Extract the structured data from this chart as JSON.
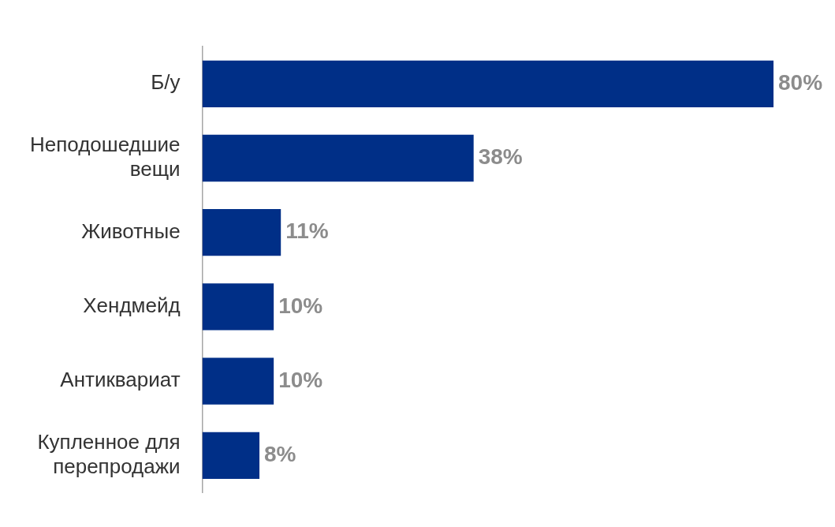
{
  "chart_data": {
    "type": "bar",
    "orientation": "horizontal",
    "categories": [
      "Б/у",
      "Неподошедшие вещи",
      "Животные",
      "Хендмейд",
      "Антиквариат",
      "Купленное для перепродажи"
    ],
    "values": [
      80,
      38,
      11,
      10,
      10,
      8
    ],
    "value_labels": [
      "80%",
      "38%",
      "11%",
      "10%",
      "10%",
      "8%"
    ],
    "color": "#002f87",
    "tick_labels": "y",
    "legend": false
  }
}
